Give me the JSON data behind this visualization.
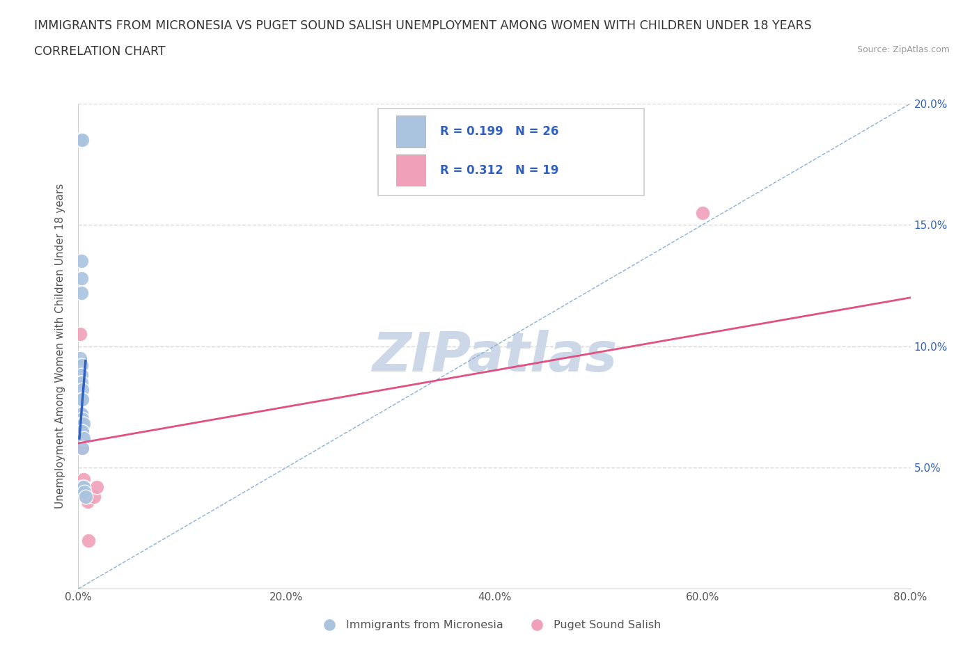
{
  "title_line1": "IMMIGRANTS FROM MICRONESIA VS PUGET SOUND SALISH UNEMPLOYMENT AMONG WOMEN WITH CHILDREN UNDER 18 YEARS",
  "title_line2": "CORRELATION CHART",
  "source": "Source: ZipAtlas.com",
  "ylabel": "Unemployment Among Women with Children Under 18 years",
  "xlim": [
    0,
    0.8
  ],
  "ylim": [
    0,
    0.2
  ],
  "xtick_vals": [
    0.0,
    0.2,
    0.4,
    0.6,
    0.8
  ],
  "ytick_vals": [
    0.05,
    0.1,
    0.15,
    0.2
  ],
  "blue_R": 0.199,
  "blue_N": 26,
  "pink_R": 0.312,
  "pink_N": 19,
  "blue_color": "#aac4e0",
  "pink_color": "#f0a0b8",
  "blue_line_color": "#3060c0",
  "pink_line_color": "#e05080",
  "diag_line_color": "#8ab0d8",
  "grid_color": "#d8d8d8",
  "grid_style": "--",
  "watermark_color": "#ccd8e8",
  "legend_R_N_color": "#3060c0",
  "blue_scatter": [
    [
      0.002,
      0.185
    ],
    [
      0.004,
      0.185
    ],
    [
      0.003,
      0.135
    ],
    [
      0.003,
      0.128
    ],
    [
      0.003,
      0.122
    ],
    [
      0.002,
      0.095
    ],
    [
      0.003,
      0.092
    ],
    [
      0.003,
      0.088
    ],
    [
      0.002,
      0.085
    ],
    [
      0.003,
      0.085
    ],
    [
      0.004,
      0.082
    ],
    [
      0.003,
      0.078
    ],
    [
      0.004,
      0.078
    ],
    [
      0.003,
      0.072
    ],
    [
      0.004,
      0.07
    ],
    [
      0.003,
      0.068
    ],
    [
      0.004,
      0.068
    ],
    [
      0.005,
      0.068
    ],
    [
      0.003,
      0.065
    ],
    [
      0.004,
      0.065
    ],
    [
      0.005,
      0.062
    ],
    [
      0.004,
      0.058
    ],
    [
      0.003,
      0.042
    ],
    [
      0.005,
      0.042
    ],
    [
      0.006,
      0.04
    ],
    [
      0.007,
      0.038
    ]
  ],
  "pink_scatter": [
    [
      0.002,
      0.185
    ],
    [
      0.002,
      0.105
    ],
    [
      0.003,
      0.078
    ],
    [
      0.003,
      0.072
    ],
    [
      0.004,
      0.068
    ],
    [
      0.004,
      0.065
    ],
    [
      0.004,
      0.062
    ],
    [
      0.003,
      0.06
    ],
    [
      0.003,
      0.058
    ],
    [
      0.004,
      0.058
    ],
    [
      0.005,
      0.045
    ],
    [
      0.006,
      0.042
    ],
    [
      0.007,
      0.04
    ],
    [
      0.008,
      0.038
    ],
    [
      0.009,
      0.036
    ],
    [
      0.01,
      0.02
    ],
    [
      0.015,
      0.038
    ],
    [
      0.018,
      0.042
    ],
    [
      0.6,
      0.155
    ]
  ],
  "blue_line_x": [
    0.002,
    0.007
  ],
  "blue_line_y": [
    0.07,
    0.09
  ],
  "pink_line_x": [
    0.0,
    0.8
  ],
  "pink_line_y": [
    0.06,
    0.12
  ],
  "figsize": [
    14.06,
    9.3
  ],
  "dpi": 100
}
